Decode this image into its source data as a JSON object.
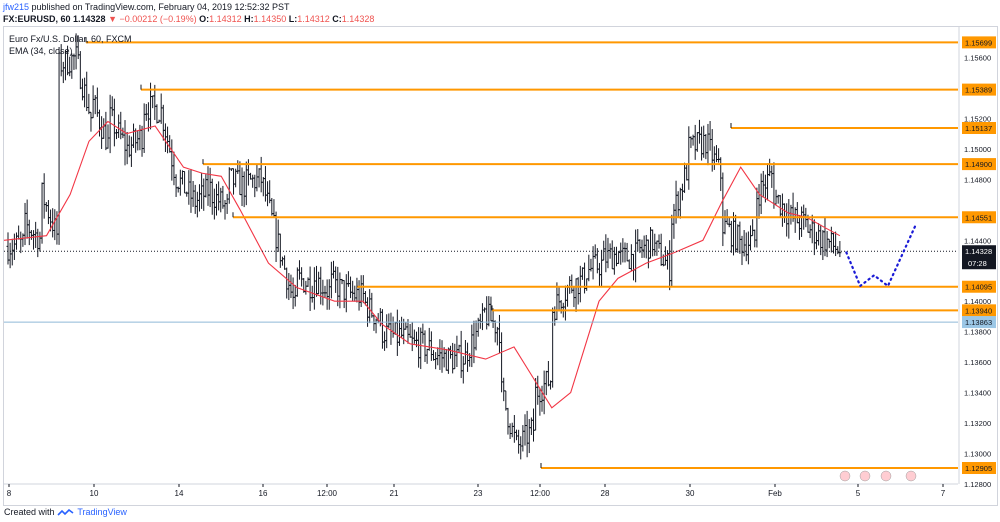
{
  "header": {
    "user": "jfw215",
    "text": " published on TradingView.com, February 04, 2019 12:52:32 PST"
  },
  "symbol": {
    "ticker": "FX:EURUSD, 60",
    "last": "1.14328",
    "change": "−0.00212 (−0.19%)",
    "o_label": "O:",
    "o": "1.14312",
    "h_label": "H:",
    "h": "1.14350",
    "l_label": "L:",
    "l": "1.14312",
    "c_label": "C:",
    "c": "1.14328"
  },
  "legend": {
    "title": "Euro Fx/U.S. Dollar, 60, FXCM",
    "indicator": "EMA (34, close)"
  },
  "footer": {
    "prefix": "Created with",
    "brand": "TradingView"
  },
  "colors": {
    "candle": "#131722",
    "ema": "#f23645",
    "level": "#ff9800",
    "projection": "#1a1ad6",
    "last_price_line": "#131722",
    "blue_line": "#8fb9d8"
  },
  "chart_data": {
    "type": "candlestick",
    "title": "Euro Fx/U.S. Dollar, 60, FXCM",
    "ylim": [
      1.128,
      1.158
    ],
    "y_ticks": [
      1.156,
      1.154,
      1.152,
      1.15,
      1.148,
      1.146,
      1.144,
      1.142,
      1.14,
      1.138,
      1.136,
      1.134,
      1.132,
      1.13,
      1.128
    ],
    "x_ticks": [
      "8",
      "10",
      "14",
      "16",
      "12:00",
      "21",
      "23",
      "12:00",
      "28",
      "30",
      "Feb",
      "5",
      "7"
    ],
    "horizontal_levels": [
      {
        "value": 1.15699,
        "label": "1.15699",
        "from": "10"
      },
      {
        "value": 1.15389,
        "label": "1.15389",
        "from": "10"
      },
      {
        "value": 1.15137,
        "label": "1.15137",
        "from": "30"
      },
      {
        "value": 1.149,
        "label": "1.14900",
        "from": "14"
      },
      {
        "value": 1.14551,
        "label": "1.14551",
        "from": "14"
      },
      {
        "value": 1.14095,
        "label": "1.14095",
        "from": "16"
      },
      {
        "value": 1.1394,
        "label": "1.13940",
        "from": "23"
      },
      {
        "value": 1.12905,
        "label": "1.12905",
        "from": "12:00"
      }
    ],
    "last_price": {
      "value": 1.14328,
      "label": "1.14328",
      "countdown": "07:28"
    },
    "blue_price": {
      "value": 1.13863,
      "label": "1.13863"
    },
    "path_points": [
      [
        1.1436,
        1.1438
      ],
      [
        1.145,
        1.144
      ],
      [
        1.147,
        1.144
      ],
      [
        1.1555,
        1.156
      ],
      [
        1.156,
        1.1515
      ],
      [
        1.153,
        1.15
      ],
      [
        1.152,
        1.15
      ],
      [
        1.15,
        1.151
      ],
      [
        1.1528,
        1.1525
      ],
      [
        1.1525,
        1.1475
      ],
      [
        1.148,
        1.1465
      ],
      [
        1.1465,
        1.1475
      ],
      [
        1.147,
        1.146
      ],
      [
        1.148,
        1.1475
      ],
      [
        1.1478,
        1.148
      ],
      [
        1.1475,
        1.1432
      ],
      [
        1.1432,
        1.139
      ],
      [
        1.1415,
        1.141
      ],
      [
        1.1415,
        1.1405
      ],
      [
        1.1412,
        1.1405
      ],
      [
        1.1405,
        1.1403
      ],
      [
        1.1398,
        1.1385
      ],
      [
        1.138,
        1.1376
      ],
      [
        1.1378,
        1.137
      ],
      [
        1.1372,
        1.1368
      ],
      [
        1.1365,
        1.1362
      ],
      [
        1.1362,
        1.1363
      ],
      [
        1.1368,
        1.1388
      ],
      [
        1.1392,
        1.138
      ],
      [
        1.134,
        1.13
      ],
      [
        1.1305,
        1.1318
      ],
      [
        1.134,
        1.135
      ],
      [
        1.1395,
        1.141
      ],
      [
        1.141,
        1.1415
      ],
      [
        1.142,
        1.1425
      ],
      [
        1.1428,
        1.1432
      ],
      [
        1.1428,
        1.143
      ],
      [
        1.1432,
        1.144
      ],
      [
        1.1435,
        1.142
      ],
      [
        1.1455,
        1.149
      ],
      [
        1.15,
        1.1505
      ],
      [
        1.1505,
        1.148
      ],
      [
        1.145,
        1.144
      ],
      [
        1.1438,
        1.144
      ],
      [
        1.147,
        1.1485
      ],
      [
        1.147,
        1.1455
      ],
      [
        1.1455,
        1.145
      ],
      [
        1.1448,
        1.144
      ],
      [
        1.144,
        1.1432
      ]
    ],
    "ema_series": [
      {
        "x": 0,
        "y": 1.144
      },
      {
        "x": 0.045,
        "y": 1.1443
      },
      {
        "x": 0.07,
        "y": 1.147
      },
      {
        "x": 0.09,
        "y": 1.1505
      },
      {
        "x": 0.11,
        "y": 1.1518
      },
      {
        "x": 0.13,
        "y": 1.151
      },
      {
        "x": 0.16,
        "y": 1.1515
      },
      {
        "x": 0.19,
        "y": 1.1488
      },
      {
        "x": 0.21,
        "y": 1.1484
      },
      {
        "x": 0.23,
        "y": 1.1482
      },
      {
        "x": 0.25,
        "y": 1.146
      },
      {
        "x": 0.28,
        "y": 1.1425
      },
      {
        "x": 0.31,
        "y": 1.1409
      },
      {
        "x": 0.35,
        "y": 1.14
      },
      {
        "x": 0.38,
        "y": 1.14
      },
      {
        "x": 0.4,
        "y": 1.1385
      },
      {
        "x": 0.43,
        "y": 1.1372
      },
      {
        "x": 0.47,
        "y": 1.1368
      },
      {
        "x": 0.51,
        "y": 1.1362
      },
      {
        "x": 0.54,
        "y": 1.137
      },
      {
        "x": 0.56,
        "y": 1.135
      },
      {
        "x": 0.58,
        "y": 1.133
      },
      {
        "x": 0.6,
        "y": 1.134
      },
      {
        "x": 0.63,
        "y": 1.14
      },
      {
        "x": 0.65,
        "y": 1.1415
      },
      {
        "x": 0.68,
        "y": 1.1425
      },
      {
        "x": 0.71,
        "y": 1.1432
      },
      {
        "x": 0.74,
        "y": 1.144
      },
      {
        "x": 0.76,
        "y": 1.1465
      },
      {
        "x": 0.78,
        "y": 1.1488
      },
      {
        "x": 0.8,
        "y": 1.147
      },
      {
        "x": 0.83,
        "y": 1.1458
      },
      {
        "x": 0.85,
        "y": 1.1455
      },
      {
        "x": 0.87,
        "y": 1.1448
      },
      {
        "x": 0.885,
        "y": 1.1443
      }
    ],
    "projection": [
      {
        "x": 0.89,
        "y": 1.1432
      },
      {
        "x": 0.905,
        "y": 1.141
      },
      {
        "x": 0.92,
        "y": 1.1417
      },
      {
        "x": 0.935,
        "y": 1.141
      },
      {
        "x": 0.95,
        "y": 1.143
      },
      {
        "x": 0.965,
        "y": 1.145
      }
    ]
  }
}
